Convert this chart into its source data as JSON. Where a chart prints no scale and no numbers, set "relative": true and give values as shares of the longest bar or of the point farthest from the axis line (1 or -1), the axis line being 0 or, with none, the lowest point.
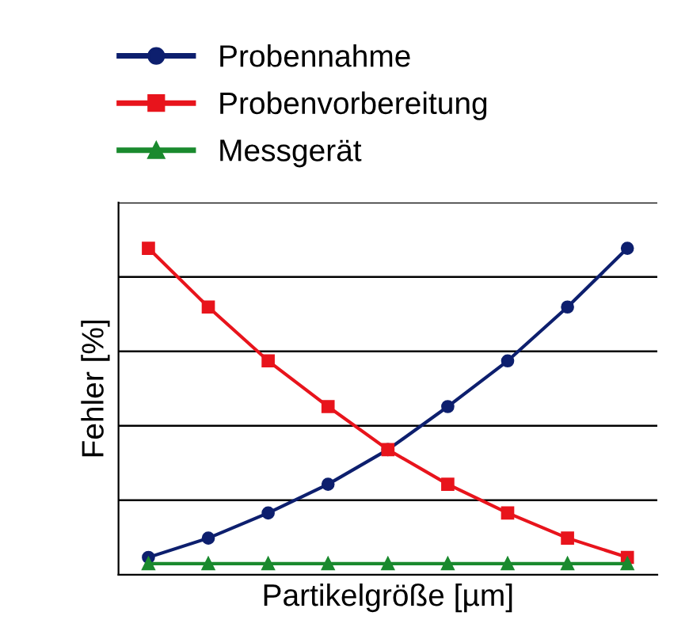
{
  "chart_data": {
    "type": "line",
    "relative": true,
    "xlabel": "Partikelgröße [µm]",
    "ylabel": "Fehler [%]",
    "categories": [
      null,
      null,
      null,
      null,
      null,
      null,
      null,
      null,
      null
    ],
    "series": [
      {
        "name": "Probennahme",
        "color": "#0d1f6e",
        "marker": "circle",
        "values": [
          0.053,
          0.112,
          0.189,
          0.277,
          0.383,
          0.515,
          0.655,
          0.82,
          1
        ]
      },
      {
        "name": "Probenvorbereitung",
        "color": "#e8141c",
        "marker": "square",
        "values": [
          1,
          0.82,
          0.655,
          0.515,
          0.383,
          0.277,
          0.189,
          0.112,
          0.053
        ]
      },
      {
        "name": "Messgerät",
        "color": "#1a8a2e",
        "marker": "triangle",
        "values": [
          0.034,
          0.034,
          0.034,
          0.034,
          0.034,
          0.034,
          0.034,
          0.034,
          0.034
        ]
      }
    ],
    "grid": "y",
    "legend": "top",
    "tick_labels": false,
    "line_style": "solid"
  }
}
